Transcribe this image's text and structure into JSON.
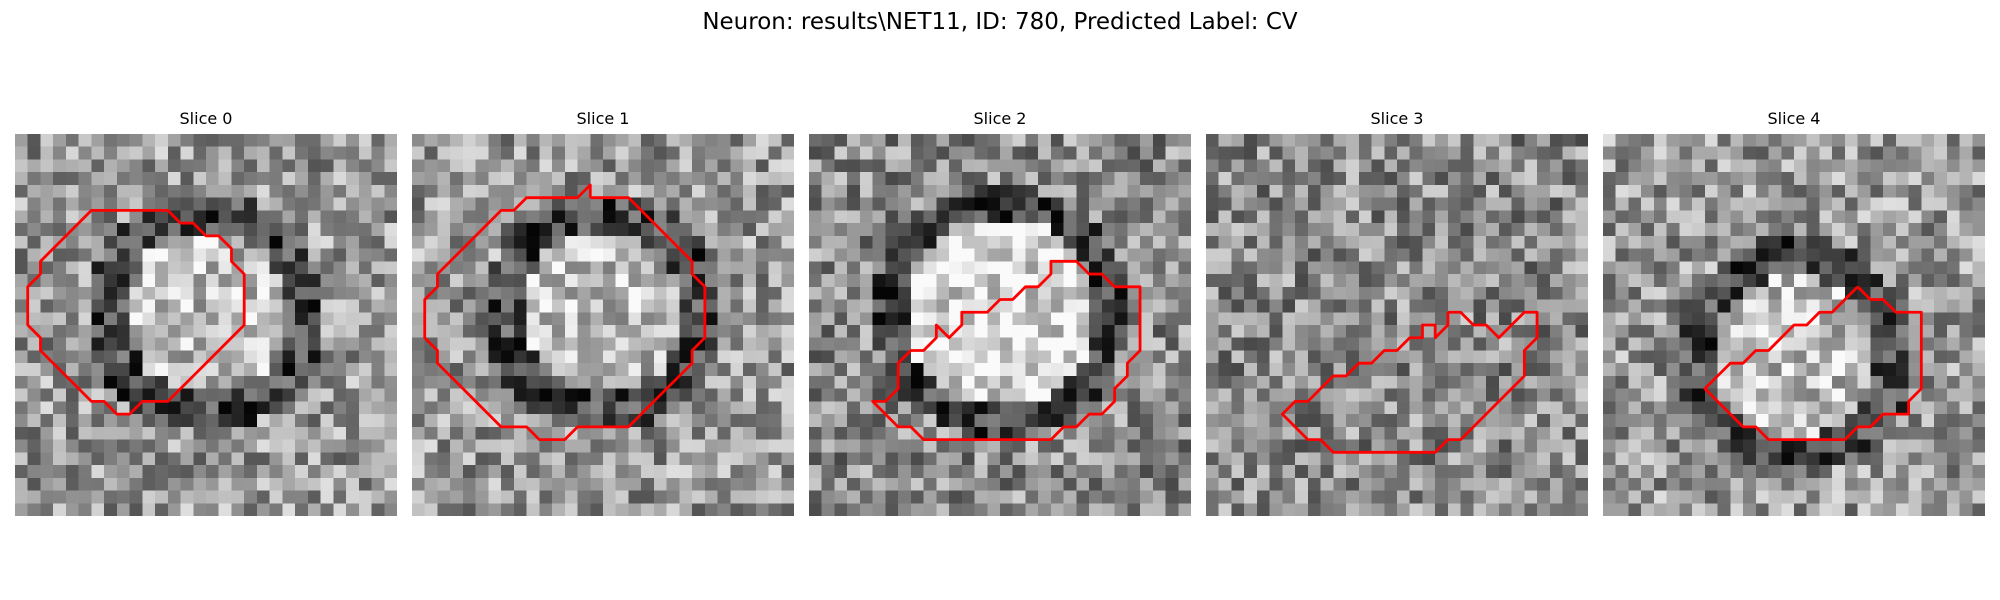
{
  "figure": {
    "title": "Neuron: results\\NET11, ID: 780, Predicted Label: CV"
  },
  "contour_color": "#ff0000",
  "colormap": "gray",
  "panels": [
    {
      "title": "Slice 0",
      "pattern": "ring",
      "contour": [
        [
          10,
          6
        ],
        [
          11,
          6
        ],
        [
          12,
          6
        ],
        [
          13,
          7
        ],
        [
          14,
          7
        ],
        [
          15,
          8
        ],
        [
          16,
          8
        ],
        [
          17,
          9
        ],
        [
          17,
          10
        ],
        [
          18,
          11
        ],
        [
          18,
          12
        ],
        [
          18,
          13
        ],
        [
          18,
          14
        ],
        [
          18,
          15
        ],
        [
          17,
          16
        ],
        [
          16,
          17
        ],
        [
          15,
          18
        ],
        [
          14,
          19
        ],
        [
          13,
          20
        ],
        [
          12,
          21
        ],
        [
          11,
          21
        ],
        [
          10,
          21
        ],
        [
          9,
          22
        ],
        [
          8,
          22
        ],
        [
          7,
          21
        ],
        [
          6,
          21
        ],
        [
          5,
          20
        ],
        [
          4,
          19
        ],
        [
          3,
          18
        ],
        [
          2,
          17
        ],
        [
          2,
          16
        ],
        [
          1,
          15
        ],
        [
          1,
          14
        ],
        [
          1,
          13
        ],
        [
          1,
          12
        ],
        [
          2,
          11
        ],
        [
          2,
          10
        ],
        [
          3,
          9
        ],
        [
          4,
          8
        ],
        [
          5,
          7
        ],
        [
          6,
          6
        ],
        [
          7,
          6
        ],
        [
          8,
          6
        ],
        [
          9,
          6
        ],
        [
          10,
          6
        ]
      ]
    },
    {
      "title": "Slice 1",
      "pattern": "ring",
      "contour": [
        [
          14,
          5
        ],
        [
          15,
          5
        ],
        [
          16,
          5
        ],
        [
          17,
          5
        ],
        [
          18,
          6
        ],
        [
          19,
          7
        ],
        [
          20,
          8
        ],
        [
          21,
          9
        ],
        [
          22,
          10
        ],
        [
          22,
          11
        ],
        [
          23,
          12
        ],
        [
          23,
          13
        ],
        [
          23,
          14
        ],
        [
          23,
          15
        ],
        [
          23,
          16
        ],
        [
          22,
          17
        ],
        [
          22,
          18
        ],
        [
          21,
          19
        ],
        [
          20,
          20
        ],
        [
          19,
          21
        ],
        [
          18,
          22
        ],
        [
          17,
          23
        ],
        [
          16,
          23
        ],
        [
          15,
          23
        ],
        [
          14,
          23
        ],
        [
          13,
          23
        ],
        [
          12,
          24
        ],
        [
          11,
          24
        ],
        [
          10,
          24
        ],
        [
          9,
          23
        ],
        [
          8,
          23
        ],
        [
          7,
          23
        ],
        [
          6,
          22
        ],
        [
          5,
          21
        ],
        [
          4,
          20
        ],
        [
          3,
          19
        ],
        [
          2,
          18
        ],
        [
          2,
          17
        ],
        [
          1,
          16
        ],
        [
          1,
          15
        ],
        [
          1,
          14
        ],
        [
          1,
          13
        ],
        [
          2,
          12
        ],
        [
          2,
          11
        ],
        [
          3,
          10
        ],
        [
          4,
          9
        ],
        [
          5,
          8
        ],
        [
          6,
          7
        ],
        [
          7,
          6
        ],
        [
          8,
          6
        ],
        [
          9,
          5
        ],
        [
          10,
          5
        ],
        [
          11,
          5
        ],
        [
          12,
          5
        ],
        [
          13,
          5
        ],
        [
          14,
          4
        ],
        [
          14,
          5
        ]
      ]
    },
    {
      "title": "Slice 2",
      "pattern": "blob",
      "contour": [
        [
          20,
          10
        ],
        [
          21,
          10
        ],
        [
          22,
          11
        ],
        [
          23,
          11
        ],
        [
          24,
          12
        ],
        [
          25,
          12
        ],
        [
          26,
          12
        ],
        [
          26,
          13
        ],
        [
          26,
          14
        ],
        [
          26,
          15
        ],
        [
          26,
          16
        ],
        [
          26,
          17
        ],
        [
          25,
          18
        ],
        [
          25,
          19
        ],
        [
          24,
          20
        ],
        [
          24,
          21
        ],
        [
          23,
          22
        ],
        [
          22,
          22
        ],
        [
          21,
          23
        ],
        [
          20,
          23
        ],
        [
          19,
          24
        ],
        [
          18,
          24
        ],
        [
          17,
          24
        ],
        [
          16,
          24
        ],
        [
          15,
          24
        ],
        [
          14,
          24
        ],
        [
          13,
          24
        ],
        [
          12,
          24
        ],
        [
          11,
          24
        ],
        [
          10,
          24
        ],
        [
          9,
          24
        ],
        [
          8,
          23
        ],
        [
          7,
          23
        ],
        [
          6,
          22
        ],
        [
          5,
          21
        ],
        [
          6,
          21
        ],
        [
          7,
          20
        ],
        [
          7,
          19
        ],
        [
          7,
          18
        ],
        [
          8,
          17
        ],
        [
          9,
          17
        ],
        [
          10,
          16
        ],
        [
          10,
          15
        ],
        [
          11,
          16
        ],
        [
          12,
          15
        ],
        [
          12,
          14
        ],
        [
          13,
          14
        ],
        [
          14,
          14
        ],
        [
          15,
          13
        ],
        [
          16,
          13
        ],
        [
          17,
          12
        ],
        [
          18,
          12
        ],
        [
          19,
          11
        ],
        [
          19,
          10
        ],
        [
          20,
          10
        ]
      ]
    },
    {
      "title": "Slice 3",
      "pattern": "plain",
      "contour": [
        [
          19,
          14
        ],
        [
          20,
          14
        ],
        [
          21,
          15
        ],
        [
          22,
          15
        ],
        [
          23,
          16
        ],
        [
          24,
          15
        ],
        [
          25,
          14
        ],
        [
          26,
          14
        ],
        [
          26,
          15
        ],
        [
          26,
          16
        ],
        [
          25,
          17
        ],
        [
          25,
          18
        ],
        [
          25,
          19
        ],
        [
          24,
          20
        ],
        [
          23,
          21
        ],
        [
          22,
          22
        ],
        [
          21,
          23
        ],
        [
          20,
          24
        ],
        [
          19,
          24
        ],
        [
          18,
          25
        ],
        [
          17,
          25
        ],
        [
          16,
          25
        ],
        [
          15,
          25
        ],
        [
          14,
          25
        ],
        [
          13,
          25
        ],
        [
          12,
          25
        ],
        [
          11,
          25
        ],
        [
          10,
          25
        ],
        [
          9,
          24
        ],
        [
          8,
          24
        ],
        [
          7,
          23
        ],
        [
          6,
          22
        ],
        [
          7,
          21
        ],
        [
          8,
          21
        ],
        [
          9,
          20
        ],
        [
          10,
          19
        ],
        [
          11,
          19
        ],
        [
          12,
          18
        ],
        [
          13,
          18
        ],
        [
          14,
          17
        ],
        [
          15,
          17
        ],
        [
          16,
          16
        ],
        [
          17,
          16
        ],
        [
          17,
          15
        ],
        [
          18,
          15
        ],
        [
          18,
          16
        ],
        [
          19,
          15
        ],
        [
          19,
          14
        ]
      ]
    },
    {
      "title": "Slice 4",
      "pattern": "ring-low",
      "contour": [
        [
          20,
          12
        ],
        [
          21,
          13
        ],
        [
          22,
          13
        ],
        [
          23,
          14
        ],
        [
          24,
          14
        ],
        [
          25,
          14
        ],
        [
          25,
          15
        ],
        [
          25,
          16
        ],
        [
          25,
          17
        ],
        [
          25,
          18
        ],
        [
          25,
          19
        ],
        [
          25,
          20
        ],
        [
          24,
          21
        ],
        [
          24,
          22
        ],
        [
          23,
          22
        ],
        [
          22,
          22
        ],
        [
          21,
          23
        ],
        [
          20,
          23
        ],
        [
          19,
          24
        ],
        [
          18,
          24
        ],
        [
          17,
          24
        ],
        [
          16,
          24
        ],
        [
          15,
          24
        ],
        [
          14,
          24
        ],
        [
          13,
          24
        ],
        [
          12,
          23
        ],
        [
          11,
          23
        ],
        [
          10,
          22
        ],
        [
          9,
          21
        ],
        [
          8,
          20
        ],
        [
          9,
          19
        ],
        [
          10,
          18
        ],
        [
          11,
          18
        ],
        [
          12,
          17
        ],
        [
          13,
          17
        ],
        [
          14,
          16
        ],
        [
          15,
          15
        ],
        [
          16,
          15
        ],
        [
          17,
          14
        ],
        [
          18,
          14
        ],
        [
          19,
          13
        ],
        [
          20,
          12
        ]
      ]
    }
  ]
}
